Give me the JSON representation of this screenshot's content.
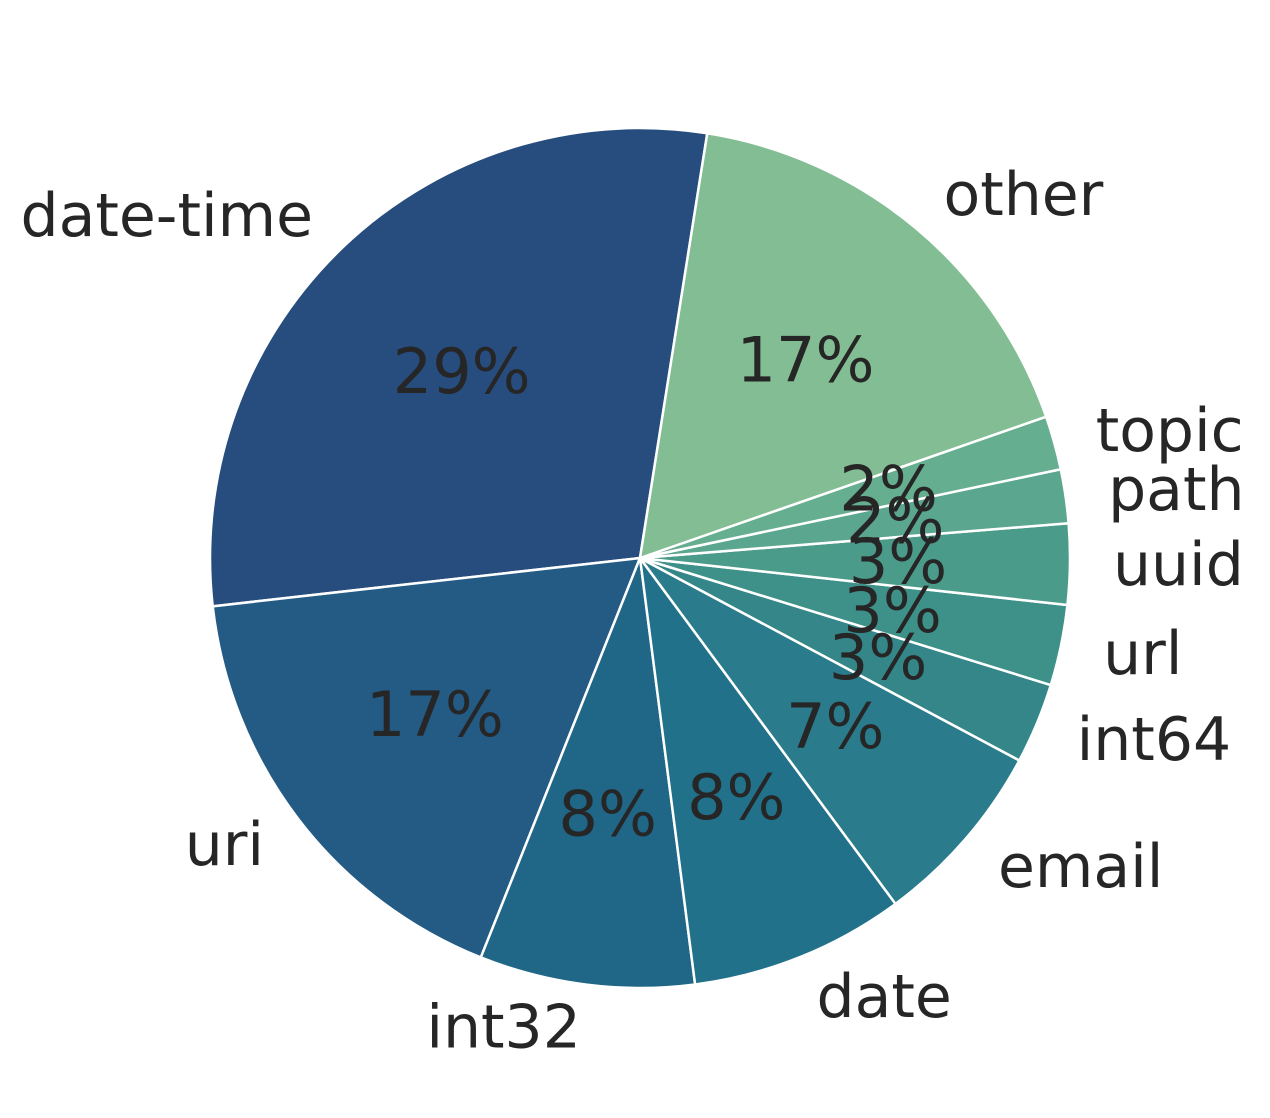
{
  "chart_data": {
    "type": "pie",
    "title": "",
    "start_angle_deg": 81,
    "direction": "counterclockwise",
    "slices": [
      {
        "label": "date-time",
        "value": 29,
        "pct_label": "29%",
        "color": "#264d7e"
      },
      {
        "label": "uri",
        "value": 17,
        "pct_label": "17%",
        "color": "#235b85"
      },
      {
        "label": "int32",
        "value": 8,
        "pct_label": "8%",
        "color": "#1f6687"
      },
      {
        "label": "date",
        "value": 8,
        "pct_label": "8%",
        "color": "#22718a"
      },
      {
        "label": "email",
        "value": 7,
        "pct_label": "7%",
        "color": "#2a7b8b"
      },
      {
        "label": "int64",
        "value": 3,
        "pct_label": "3%",
        "color": "#348689"
      },
      {
        "label": "url",
        "value": 3,
        "pct_label": "3%",
        "color": "#3e9189"
      },
      {
        "label": "uuid",
        "value": 3,
        "pct_label": "3%",
        "color": "#4b9b8a"
      },
      {
        "label": "path",
        "value": 2,
        "pct_label": "2%",
        "color": "#5aa68e"
      },
      {
        "label": "topic",
        "value": 2,
        "pct_label": "2%",
        "color": "#66ae90"
      },
      {
        "label": "other",
        "value": 17,
        "pct_label": "17%",
        "color": "#82bd93"
      }
    ]
  }
}
